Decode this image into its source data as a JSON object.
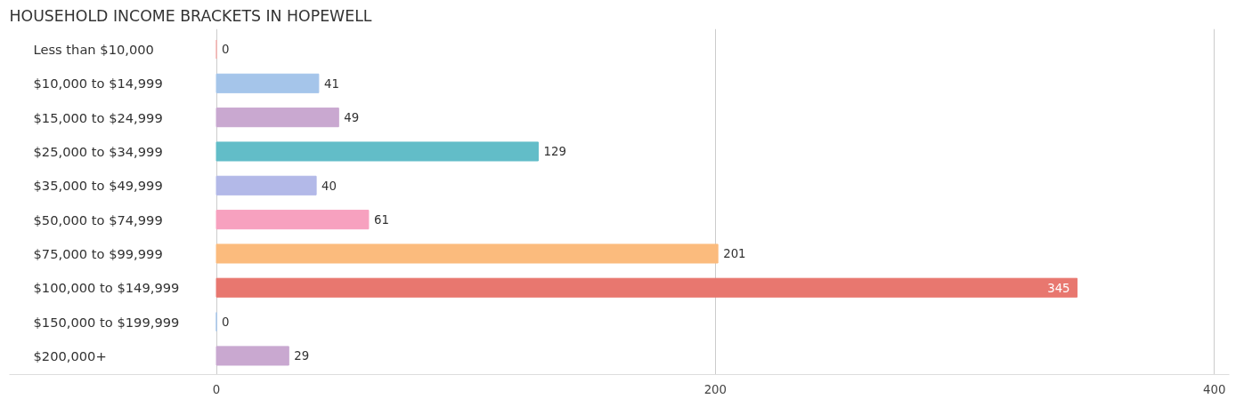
{
  "chart_data": {
    "type": "bar",
    "orientation": "horizontal",
    "title": "HOUSEHOLD INCOME BRACKETS IN HOPEWELL",
    "categories": [
      "Less than $10,000",
      "$10,000 to $14,999",
      "$15,000 to $24,999",
      "$25,000 to $34,999",
      "$35,000 to $49,999",
      "$50,000 to $74,999",
      "$75,000 to $99,999",
      "$100,000 to $149,999",
      "$150,000 to $199,999",
      "$200,000+"
    ],
    "values": [
      0,
      41,
      49,
      129,
      40,
      61,
      201,
      345,
      0,
      29
    ],
    "colors": [
      "#f4aeac",
      "#a5c5ea",
      "#c9a8d0",
      "#62bdc8",
      "#b3b9e8",
      "#f7a1bf",
      "#fbbb7d",
      "#e8776f",
      "#a5c5ea",
      "#c9a8d0"
    ],
    "xlim": [
      -83,
      406
    ],
    "xticks": [
      0,
      200,
      400
    ],
    "grid": "x",
    "data_labels": true
  }
}
